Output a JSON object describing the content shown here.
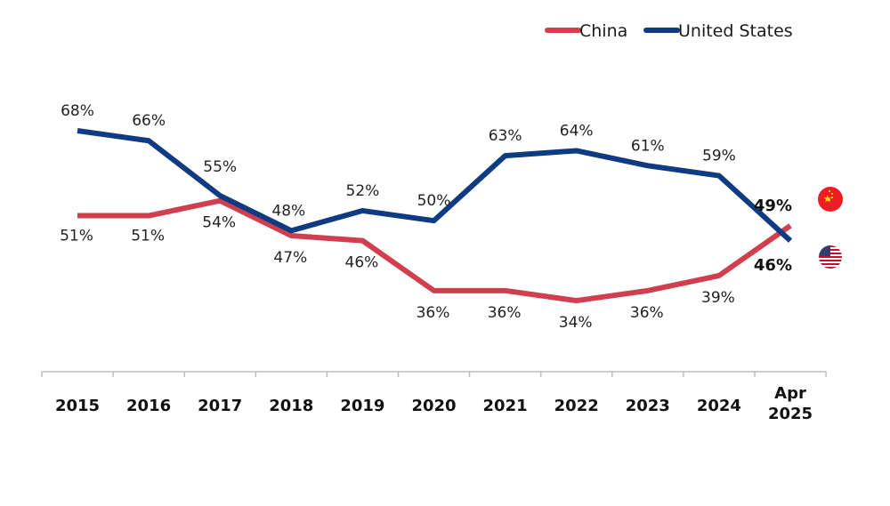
{
  "chart_data": {
    "type": "line",
    "title": "",
    "xlabel": "",
    "ylabel": "",
    "categories": [
      "2015",
      "2016",
      "2017",
      "2018",
      "2019",
      "2020",
      "2021",
      "2022",
      "2023",
      "2024",
      "Apr 2025"
    ],
    "category_lines": [
      [
        "2015"
      ],
      [
        "2016"
      ],
      [
        "2017"
      ],
      [
        "2018"
      ],
      [
        "2019"
      ],
      [
        "2020"
      ],
      [
        "2021"
      ],
      [
        "2022"
      ],
      [
        "2023"
      ],
      [
        "2024"
      ],
      [
        "Apr",
        "2025"
      ]
    ],
    "series": [
      {
        "name": "China",
        "color": "#d13f4f",
        "values": [
          51,
          51,
          54,
          47,
          46,
          36,
          36,
          34,
          36,
          39,
          49
        ],
        "labels": [
          "51%",
          "51%",
          "54%",
          "47%",
          "46%",
          "36%",
          "36%",
          "34%",
          "36%",
          "39%",
          "49%"
        ],
        "flag": "china-flag"
      },
      {
        "name": "United States",
        "color": "#0f3b82",
        "values": [
          68,
          66,
          55,
          48,
          52,
          50,
          63,
          64,
          61,
          59,
          46
        ],
        "labels": [
          "68%",
          "66%",
          "55%",
          "48%",
          "52%",
          "50%",
          "63%",
          "64%",
          "61%",
          "59%",
          "46%"
        ],
        "flag": "us-flag"
      }
    ],
    "legend": {
      "position": "top-right",
      "entries": [
        "China",
        "United States"
      ]
    },
    "grid": false,
    "ylim": [
      25,
      75
    ],
    "last_point_labels_bold": true
  }
}
